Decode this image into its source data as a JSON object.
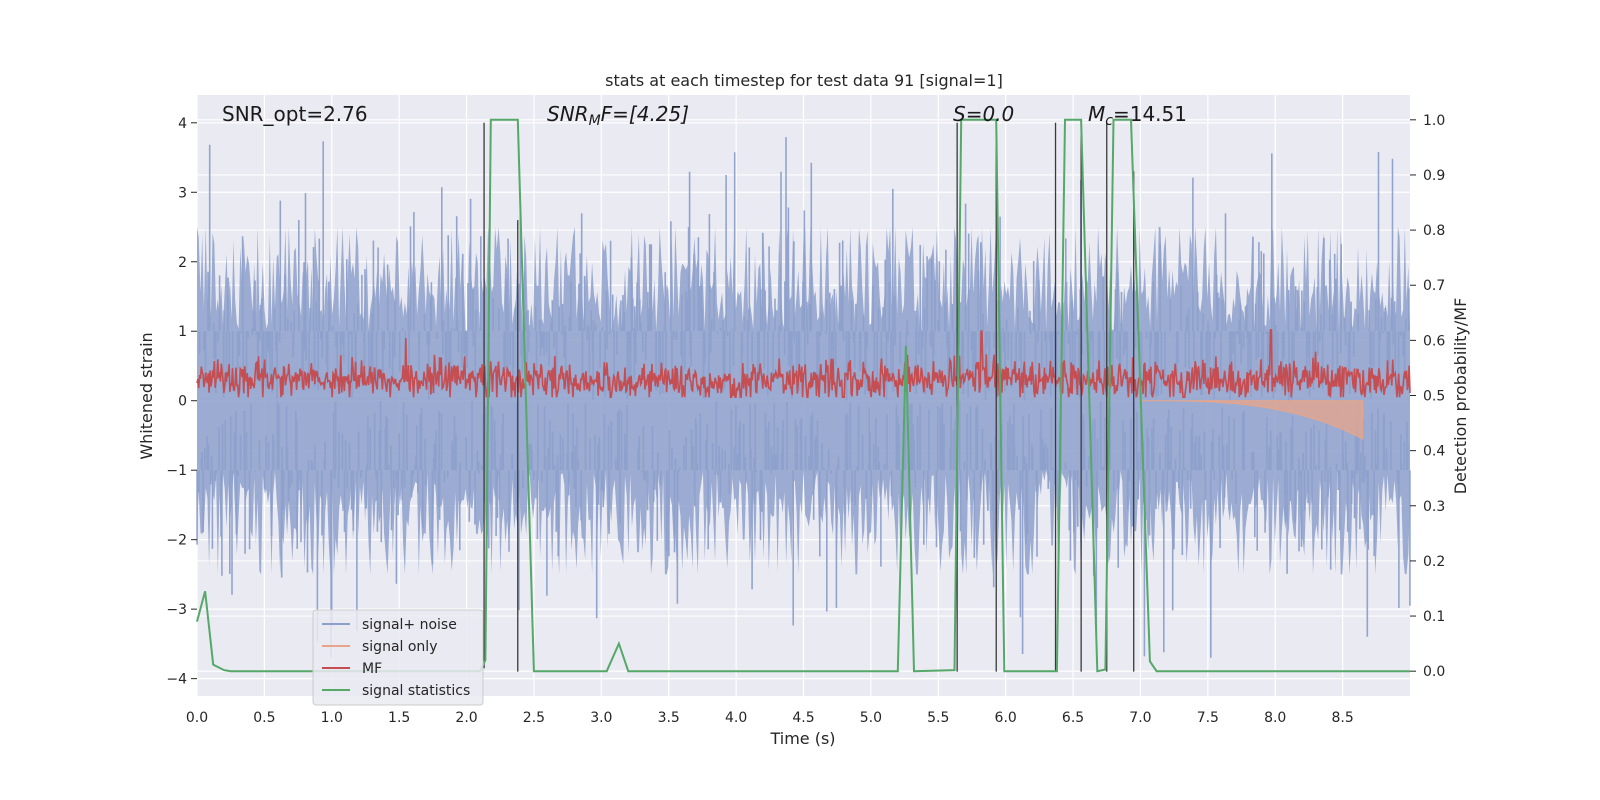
{
  "chart_data": {
    "type": "line",
    "title": "stats at each timestep for test data 91 [signal=1]",
    "xlabel": "Time (s)",
    "ylabel": "Whitened strain",
    "y2label": "Detection probability/MF",
    "xlim": [
      0,
      9.0
    ],
    "ylim": [
      -4.25,
      4.4
    ],
    "y2lim": [
      -0.045,
      1.045
    ],
    "xticks": [
      "0.0",
      "0.5",
      "1.0",
      "1.5",
      "2.0",
      "2.5",
      "3.0",
      "3.5",
      "4.0",
      "4.5",
      "5.0",
      "5.5",
      "6.0",
      "6.5",
      "7.0",
      "7.5",
      "8.0",
      "8.5"
    ],
    "yticks": [
      "4",
      "3",
      "2",
      "1",
      "0",
      "−1",
      "−2",
      "−3",
      "−4"
    ],
    "y2ticks": [
      "1.0",
      "0.9",
      "0.8",
      "0.7",
      "0.6",
      "0.5",
      "0.4",
      "0.3",
      "0.2",
      "0.1",
      "0.0"
    ],
    "grid": true,
    "legend_position": "lower-left",
    "annotations": {
      "snr_opt": "SNR_opt=2.76",
      "snr_mf_prefix": "SNR",
      "snr_mf_sub": "M",
      "snr_mf_suffix": "F=[4.25]",
      "s_value": "S=0.0",
      "mc_prefix": "M",
      "mc_sub": "c",
      "mc_suffix": "=14.51"
    },
    "series": [
      {
        "name": "signal+ noise",
        "color": "#8da0cb",
        "description_values": {
          "typical_range": [
            -2.4,
            2.4
          ],
          "extremes": [
            -3.7,
            3.8
          ]
        }
      },
      {
        "name": "signal only",
        "color": "#e8a58a",
        "chirp_start": 7.0,
        "chirp_end": 8.65,
        "min_value": -0.55
      },
      {
        "name": "MF",
        "color": "#c44e52",
        "typical_range": [
          0.05,
          0.85
        ],
        "peaks": [
          {
            "x": 1.55,
            "y": 0.9
          },
          {
            "x": 5.82,
            "y": 1.0
          },
          {
            "x": 7.97,
            "y": 1.02
          }
        ]
      },
      {
        "name": "signal statistics",
        "color": "#55a868",
        "x": [
          0.0,
          0.06,
          0.12,
          0.2,
          0.25,
          2.1,
          2.14,
          2.18,
          2.38,
          2.5,
          3.04,
          3.13,
          3.2,
          5.2,
          5.26,
          5.32,
          5.62,
          5.67,
          5.93,
          5.99,
          6.38,
          6.44,
          6.56,
          6.68,
          6.74,
          6.8,
          6.93,
          7.07,
          7.12,
          9.0
        ],
        "y": [
          0.09,
          0.145,
          0.012,
          0.002,
          0.0,
          0.0,
          0.02,
          1.0,
          1.0,
          0.0,
          0.0,
          0.05,
          0.0,
          0.0,
          0.59,
          0.0,
          0.002,
          1.0,
          1.0,
          0.0,
          0.0,
          1.0,
          1.0,
          0.0,
          0.003,
          1.0,
          1.0,
          0.018,
          0.0,
          0.0
        ]
      }
    ],
    "vertical_markers": [
      {
        "x": 2.13,
        "y_top": 4.0,
        "y_bottom": -3.85
      },
      {
        "x": 2.38,
        "y_top": 2.6,
        "y_bottom": -3.9
      },
      {
        "x": 5.64,
        "y_top": 4.0,
        "y_bottom": -3.9
      },
      {
        "x": 5.93,
        "y_top": 4.0,
        "y_bottom": -3.9
      },
      {
        "x": 6.37,
        "y_top": 4.0,
        "y_bottom": -3.9
      },
      {
        "x": 6.56,
        "y_top": 4.0,
        "y_bottom": -3.9
      },
      {
        "x": 6.75,
        "y_top": 4.0,
        "y_bottom": -3.9
      },
      {
        "x": 6.95,
        "y_top": 3.3,
        "y_bottom": -3.9
      }
    ]
  }
}
